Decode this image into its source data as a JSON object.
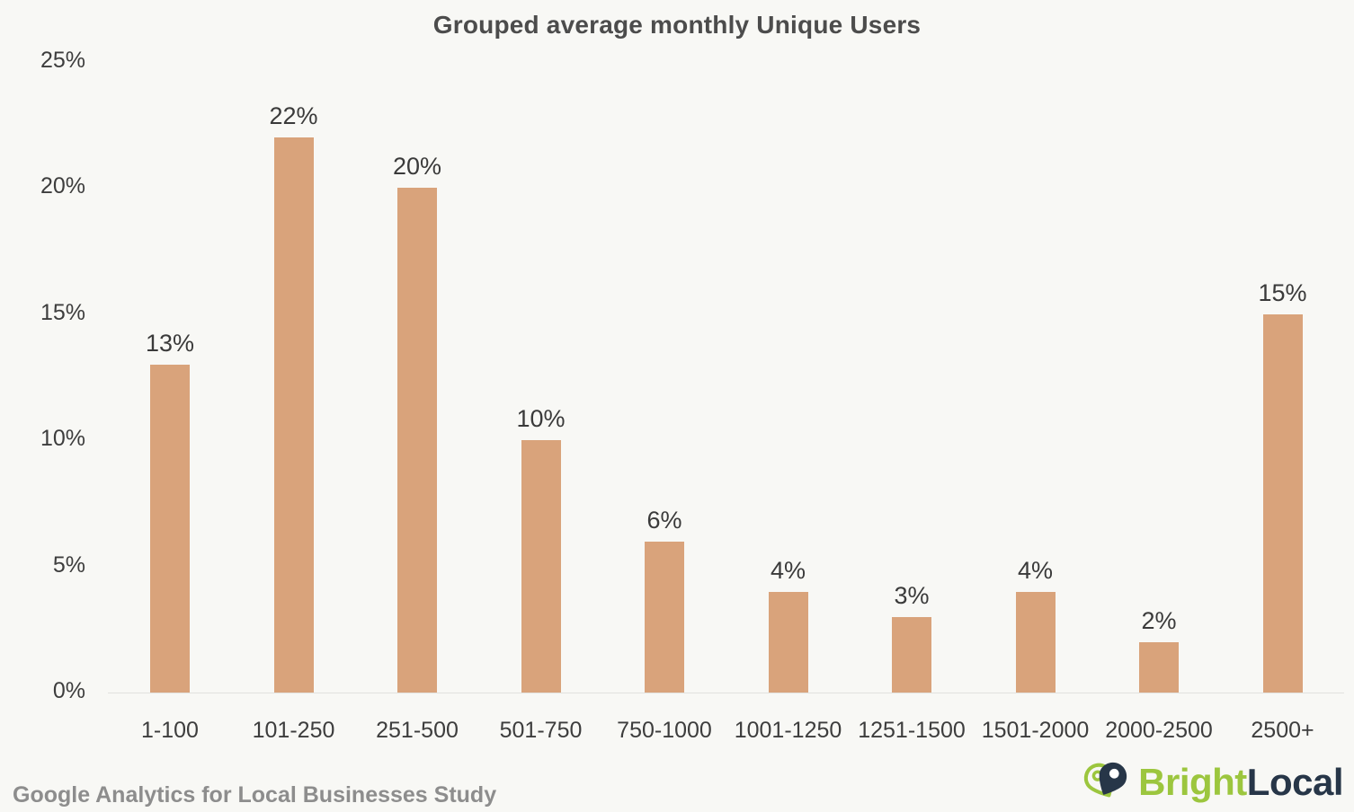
{
  "title": "Grouped average monthly Unique Users",
  "chart_data": {
    "type": "bar",
    "title": "Grouped average monthly Unique Users",
    "categories": [
      "1-100",
      "101-250",
      "251-500",
      "501-750",
      "750-1000",
      "1001-1250",
      "1251-1500",
      "1501-2000",
      "2000-2500",
      "2500+"
    ],
    "values": [
      13,
      22,
      20,
      10,
      6,
      4,
      3,
      4,
      2,
      15
    ],
    "value_labels": [
      "13%",
      "22%",
      "20%",
      "10%",
      "6%",
      "4%",
      "3%",
      "4%",
      "2%",
      "15%"
    ],
    "xlabel": "",
    "ylabel": "",
    "ylim": [
      0,
      25
    ],
    "yticks": [
      0,
      5,
      10,
      15,
      20,
      25
    ],
    "ytick_labels": [
      "0%",
      "5%",
      "10%",
      "15%",
      "20%",
      "25%"
    ],
    "grid": false,
    "legend": null,
    "bar_color": "#d9a37b"
  },
  "footer": {
    "source_text": "Google Analytics for Local Businesses Study",
    "brand_part1": "Bright",
    "brand_part2": "Local"
  },
  "colors": {
    "background": "#f8f8f5",
    "bar": "#d9a37b",
    "title_text": "#4c4c4c",
    "axis_text": "#3d3d3d",
    "footer_text": "#8d8d8d",
    "brand_green": "#9cc63e",
    "brand_navy": "#273648",
    "axis_line": "#e2e2de"
  }
}
